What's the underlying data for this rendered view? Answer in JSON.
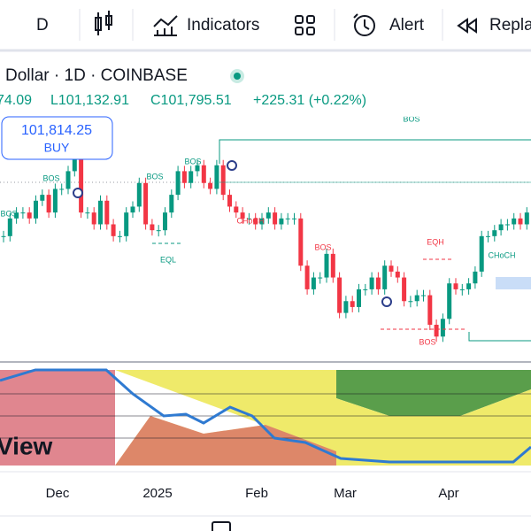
{
  "toolbar": {
    "interval": "D",
    "indicators": "Indicators",
    "alert": "Alert",
    "replay": "Repla"
  },
  "legend": {
    "symbol": "Dollar · 1D · COINBASE",
    "ohlc": "74.09",
    "low": "L101,132.91",
    "close": "C101,795.51",
    "change": "+225.31 (+0.22%)"
  },
  "buy_box": {
    "price": "101,814.25",
    "action": "BUY"
  },
  "watermark": "View",
  "annotations": [
    {
      "text": "BOS",
      "color": "#089981"
    },
    {
      "text": "BOS",
      "color": "#089981"
    },
    {
      "text": "BOS",
      "color": "#089981"
    },
    {
      "text": "BOS",
      "color": "#089981"
    },
    {
      "text": "BOS",
      "color": "#089981"
    },
    {
      "text": "EQL",
      "color": "#089981"
    },
    {
      "text": "CHoCH",
      "color": "#f23645"
    },
    {
      "text": "BOS",
      "color": "#f23645"
    },
    {
      "text": "EQH",
      "color": "#f23645"
    },
    {
      "text": "BOS",
      "color": "#f23645"
    },
    {
      "text": "CHoCH",
      "color": "#089981"
    }
  ],
  "chart_data": {
    "type": "candlestick",
    "up_color": "#089981",
    "down_color": "#f23645",
    "ylim": [
      72300,
      113500
    ],
    "close": [
      93000,
      96000,
      97000,
      97000,
      96000,
      99000,
      100000,
      97000,
      101000,
      101000,
      104000,
      106000,
      97000,
      97000,
      95000,
      99000,
      95000,
      93000,
      93000,
      97000,
      98000,
      102000,
      95000,
      94000,
      94000,
      97000,
      100000,
      104000,
      102000,
      104000,
      105000,
      102000,
      101000,
      105000,
      100000,
      98000,
      97000,
      96000,
      96000,
      95000,
      96000,
      97000,
      95000,
      96000,
      96000,
      96000,
      88000,
      84000,
      86000,
      86000,
      90000,
      86000,
      80000,
      82000,
      81000,
      84000,
      84000,
      86000,
      84000,
      88000,
      87000,
      86000,
      82000,
      82000,
      83000,
      83000,
      78000,
      76000,
      79000,
      85000,
      84000,
      84000,
      85000,
      87000,
      93000,
      93000,
      94000,
      95000,
      95000,
      96000,
      95000,
      97000,
      101795
    ]
  },
  "time_axis": [
    "Dec",
    "2025",
    "Feb",
    "Mar",
    "Apr"
  ]
}
